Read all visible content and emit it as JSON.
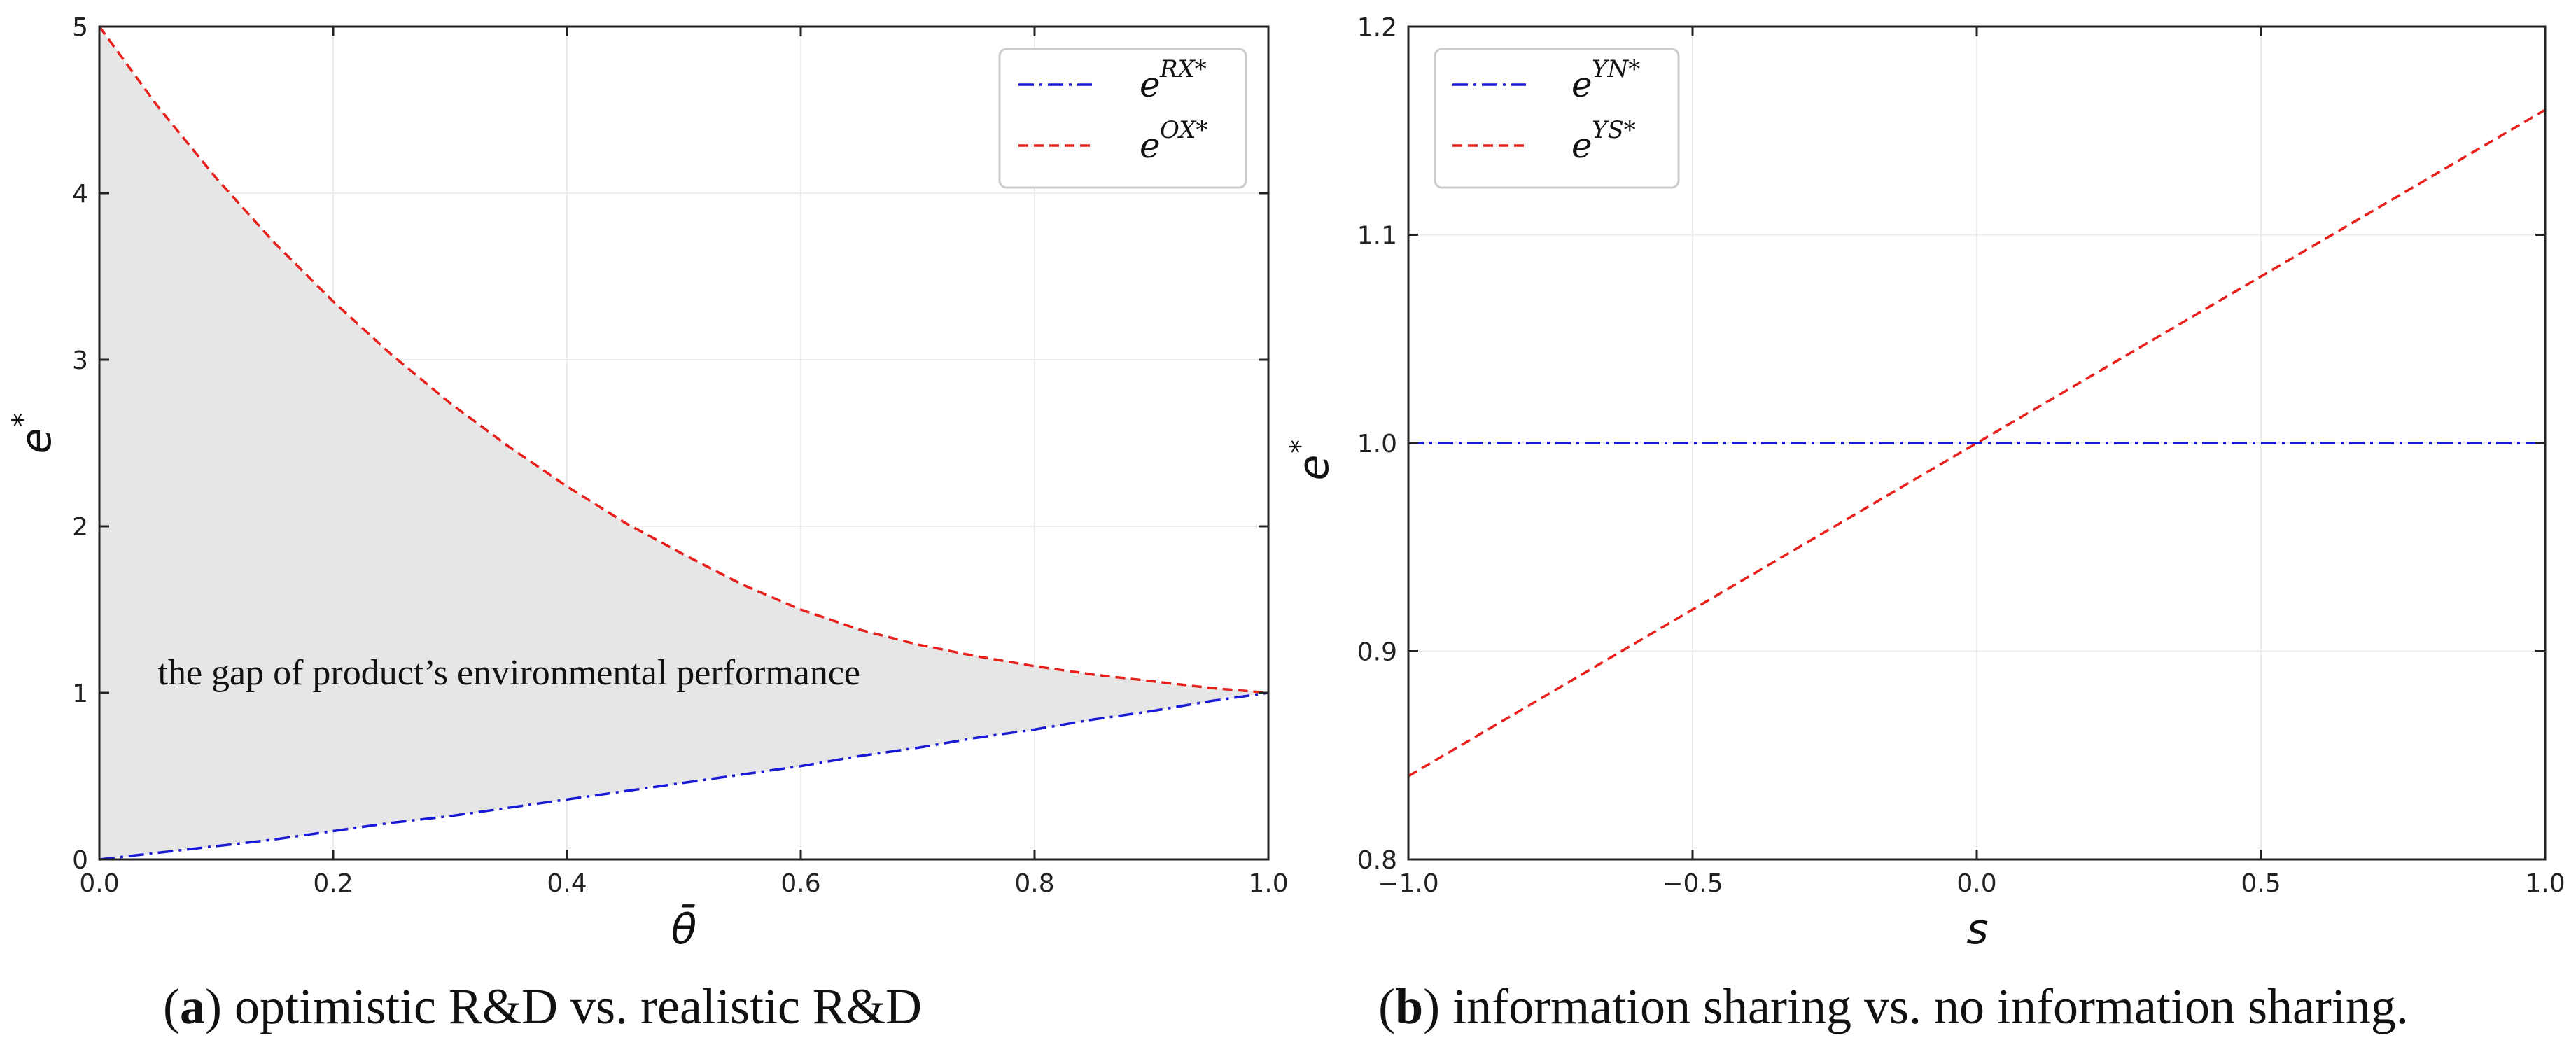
{
  "chart_data": [
    {
      "type": "line",
      "panel": "a",
      "xlabel": "θ̄",
      "ylabel": "e",
      "ylabel_sup": "*",
      "xlim": [
        0,
        1
      ],
      "ylim": [
        0,
        5
      ],
      "xticks": [
        "0.0",
        "0.2",
        "0.4",
        "0.6",
        "0.8",
        "1.0"
      ],
      "yticks": [
        "0",
        "1",
        "2",
        "3",
        "4",
        "5"
      ],
      "grid": true,
      "legend_position": "top-right",
      "x": [
        0.0,
        0.05,
        0.1,
        0.15,
        0.2,
        0.25,
        0.3,
        0.35,
        0.4,
        0.45,
        0.5,
        0.55,
        0.6,
        0.65,
        0.7,
        0.75,
        0.8,
        0.85,
        0.9,
        0.95,
        1.0
      ],
      "series": [
        {
          "name": "e",
          "name_sup": "RX*",
          "color": "#1a1ad6",
          "style": "dashdot",
          "values": [
            0.0,
            0.04,
            0.08,
            0.12,
            0.17,
            0.22,
            0.26,
            0.31,
            0.36,
            0.41,
            0.46,
            0.51,
            0.56,
            0.62,
            0.67,
            0.73,
            0.78,
            0.84,
            0.89,
            0.95,
            1.0
          ]
        },
        {
          "name": "e",
          "name_sup": "OX*",
          "color": "#e8201c",
          "style": "dashed",
          "values": [
            5.0,
            4.52,
            4.09,
            3.7,
            3.35,
            3.03,
            2.74,
            2.48,
            2.24,
            2.02,
            1.83,
            1.65,
            1.5,
            1.38,
            1.29,
            1.22,
            1.16,
            1.11,
            1.07,
            1.03,
            1.0
          ]
        }
      ],
      "fill_between": {
        "color": "#e6e6e6"
      },
      "annotation": "the gap of product’s environmental performance",
      "caption_label": "a",
      "caption_text": "optimistic R&D vs. realistic R&D"
    },
    {
      "type": "line",
      "panel": "b",
      "xlabel": "s",
      "ylabel": "e",
      "ylabel_sup": "*",
      "xlim": [
        -1,
        1
      ],
      "ylim": [
        0.8,
        1.2
      ],
      "xticks": [
        "−1.0",
        "−0.5",
        "0.0",
        "0.5",
        "1.0"
      ],
      "yticks": [
        "0.8",
        "0.9",
        "1.0",
        "1.1",
        "1.2"
      ],
      "grid": true,
      "legend_position": "top-left",
      "x": [
        -1.0,
        1.0
      ],
      "series": [
        {
          "name": "e",
          "name_sup": "YN*",
          "color": "#1a1ad6",
          "style": "dashdot",
          "values": [
            1.0,
            1.0
          ]
        },
        {
          "name": "e",
          "name_sup": "YS*",
          "color": "#e8201c",
          "style": "dashed",
          "values": [
            0.84,
            1.16
          ]
        }
      ],
      "caption_label": "b",
      "caption_text": "information sharing vs. no information sharing."
    }
  ],
  "caption_a": {
    "open": "(",
    "label": "a",
    "close": ")",
    "text": " optimistic R&D vs. realistic R&D"
  },
  "caption_b": {
    "open": "(",
    "label": "b",
    "close": ")",
    "text": " information sharing vs. no information sharing."
  }
}
